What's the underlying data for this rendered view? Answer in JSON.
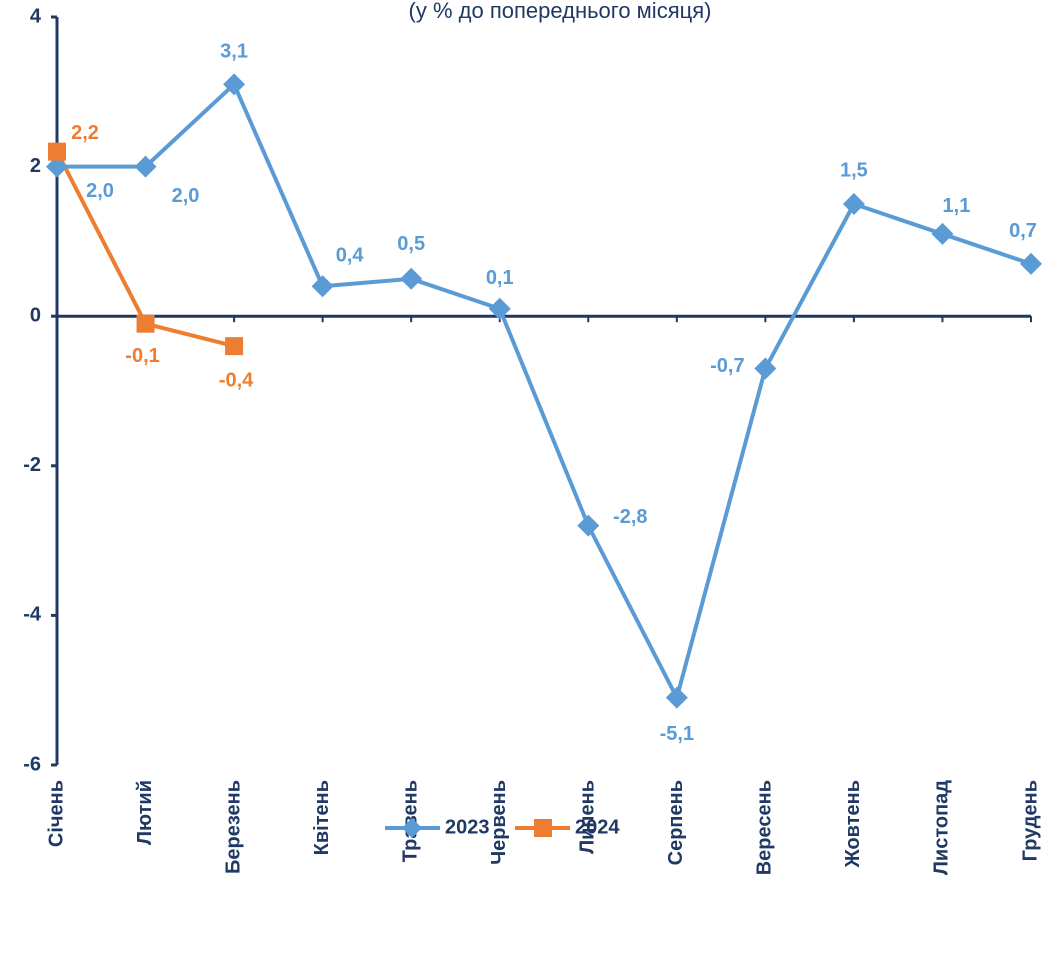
{
  "chart_data": {
    "type": "line",
    "subtitle": "(у % до попереднього місяця)",
    "categories": [
      "Січень",
      "Лютий",
      "Березень",
      "Квітень",
      "Травень",
      "Червень",
      "Липень",
      "Серпень",
      "Вересень",
      "Жовтень",
      "Листопад",
      "Грудень"
    ],
    "series": [
      {
        "name": "2023",
        "color": "#5b9bd5",
        "marker": "diamond",
        "values": [
          2.0,
          2.0,
          3.1,
          0.4,
          0.5,
          0.1,
          -2.8,
          -5.1,
          -0.7,
          1.5,
          1.1,
          0.7
        ],
        "value_labels": [
          "2,0",
          "2,0",
          "3,1",
          "0,4",
          "0,5",
          "0,1",
          "-2,8",
          "-5,1",
          "-0,7",
          "1,5",
          "1,1",
          "0,7"
        ]
      },
      {
        "name": "2024",
        "color": "#ed7d31",
        "marker": "square",
        "values": [
          2.2,
          -0.1,
          -0.4,
          null,
          null,
          null,
          null,
          null,
          null,
          null,
          null,
          null
        ],
        "value_labels": [
          "2,2",
          "-0,1",
          "-0,4",
          null,
          null,
          null,
          null,
          null,
          null,
          null,
          null,
          null
        ]
      }
    ],
    "ylim": [
      -6,
      4
    ],
    "yticks": [
      -6,
      -4,
      -2,
      0,
      2,
      4
    ],
    "legend": "bottom"
  }
}
